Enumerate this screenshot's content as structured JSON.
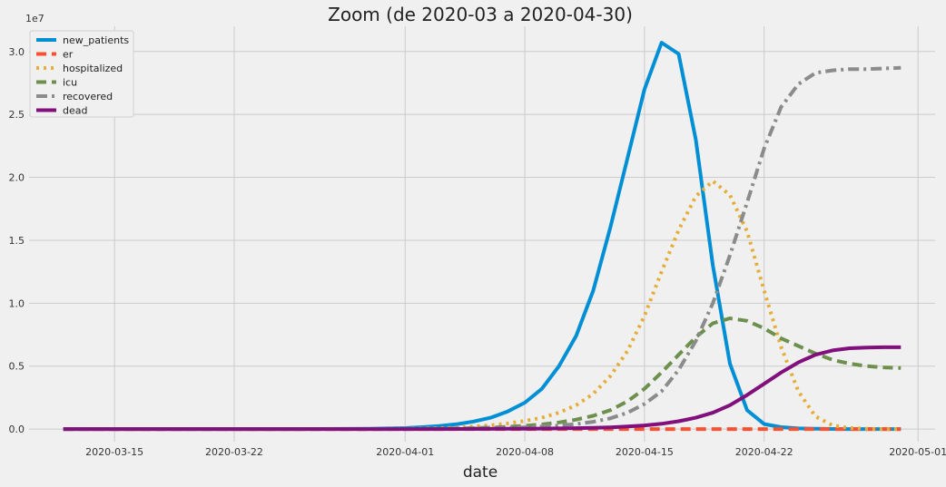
{
  "chart_data": {
    "type": "line",
    "title": "Zoom (de 2020-03 a 2020-04-30)",
    "xlabel": "date",
    "ylabel": "",
    "y_scale_note": "1e7",
    "xlim": [
      "2020-03-10",
      "2020-05-02"
    ],
    "ylim": [
      -1000000,
      32000000
    ],
    "grid": true,
    "legend_position": "top-left",
    "x_ticks": [
      "2020-03-15",
      "2020-03-22",
      "2020-04-01",
      "2020-04-08",
      "2020-04-15",
      "2020-04-22",
      "2020-05-01"
    ],
    "y_ticks": [
      0,
      5000000,
      10000000,
      15000000,
      20000000,
      25000000,
      30000000
    ],
    "y_tick_labels": [
      "0.0",
      "0.5",
      "1.0",
      "1.5",
      "2.0",
      "2.5",
      "3.0"
    ],
    "x": [
      "2020-03-12",
      "2020-03-15",
      "2020-03-20",
      "2020-03-25",
      "2020-03-30",
      "2020-04-01",
      "2020-04-02",
      "2020-04-03",
      "2020-04-04",
      "2020-04-05",
      "2020-04-06",
      "2020-04-07",
      "2020-04-08",
      "2020-04-09",
      "2020-04-10",
      "2020-04-11",
      "2020-04-12",
      "2020-04-13",
      "2020-04-14",
      "2020-04-15",
      "2020-04-16",
      "2020-04-17",
      "2020-04-18",
      "2020-04-19",
      "2020-04-20",
      "2020-04-21",
      "2020-04-22",
      "2020-04-23",
      "2020-04-24",
      "2020-04-25",
      "2020-04-26",
      "2020-04-27",
      "2020-04-28",
      "2020-04-29",
      "2020-04-30"
    ],
    "series": [
      {
        "name": "new_patients",
        "color": "#008fd5",
        "dash": "solid",
        "values": [
          0,
          0,
          0,
          0,
          20000,
          80000,
          150000,
          250000,
          380000,
          600000,
          900000,
          1400000,
          2100000,
          3200000,
          5000000,
          7400000,
          11000000,
          16000000,
          21500000,
          27000000,
          30700000,
          29800000,
          23000000,
          13000000,
          5200000,
          1500000,
          400000,
          150000,
          50000,
          20000,
          10000,
          5000,
          0,
          0,
          0
        ]
      },
      {
        "name": "er",
        "color": "#fc4f30",
        "dash": "dashed",
        "values": [
          0,
          0,
          0,
          0,
          0,
          0,
          0,
          0,
          0,
          0,
          0,
          0,
          0,
          0,
          0,
          0,
          0,
          0,
          0,
          0,
          0,
          0,
          0,
          0,
          0,
          0,
          0,
          0,
          0,
          0,
          0,
          0,
          0,
          0,
          0
        ]
      },
      {
        "name": "hospitalized",
        "color": "#e5ae38",
        "dash": "dotted",
        "values": [
          0,
          0,
          0,
          0,
          5000,
          20000,
          40000,
          70000,
          120000,
          200000,
          300000,
          450000,
          650000,
          900000,
          1300000,
          1900000,
          2800000,
          4200000,
          6200000,
          9000000,
          12500000,
          15800000,
          18500000,
          19700000,
          18600000,
          15700000,
          11000000,
          6500000,
          3000000,
          1000000,
          300000,
          80000,
          20000,
          5000,
          0
        ]
      },
      {
        "name": "icu",
        "color": "#6d904f",
        "dash": "dashed",
        "values": [
          0,
          0,
          0,
          0,
          2000,
          8000,
          15000,
          30000,
          50000,
          80000,
          120000,
          180000,
          260000,
          370000,
          530000,
          750000,
          1050000,
          1500000,
          2200000,
          3200000,
          4500000,
          5900000,
          7300000,
          8400000,
          8800000,
          8600000,
          8000000,
          7200000,
          6600000,
          6000000,
          5500000,
          5200000,
          5000000,
          4900000,
          4850000
        ]
      },
      {
        "name": "recovered",
        "color": "#8b8b8b",
        "dash": "dashdot",
        "values": [
          0,
          0,
          0,
          0,
          0,
          5000,
          10000,
          20000,
          30000,
          50000,
          70000,
          100000,
          140000,
          200000,
          280000,
          400000,
          580000,
          850000,
          1300000,
          2000000,
          3000000,
          4700000,
          7000000,
          10000000,
          13800000,
          18000000,
          22300000,
          25600000,
          27400000,
          28300000,
          28500000,
          28600000,
          28600000,
          28650000,
          28700000
        ]
      },
      {
        "name": "dead",
        "color": "#810f7c",
        "dash": "solid",
        "values": [
          0,
          0,
          0,
          0,
          0,
          0,
          0,
          5000,
          8000,
          12000,
          16000,
          20000,
          28000,
          40000,
          55000,
          75000,
          100000,
          140000,
          200000,
          290000,
          420000,
          620000,
          900000,
          1300000,
          1900000,
          2700000,
          3600000,
          4500000,
          5300000,
          5900000,
          6250000,
          6420000,
          6480000,
          6500000,
          6500000
        ]
      }
    ]
  }
}
